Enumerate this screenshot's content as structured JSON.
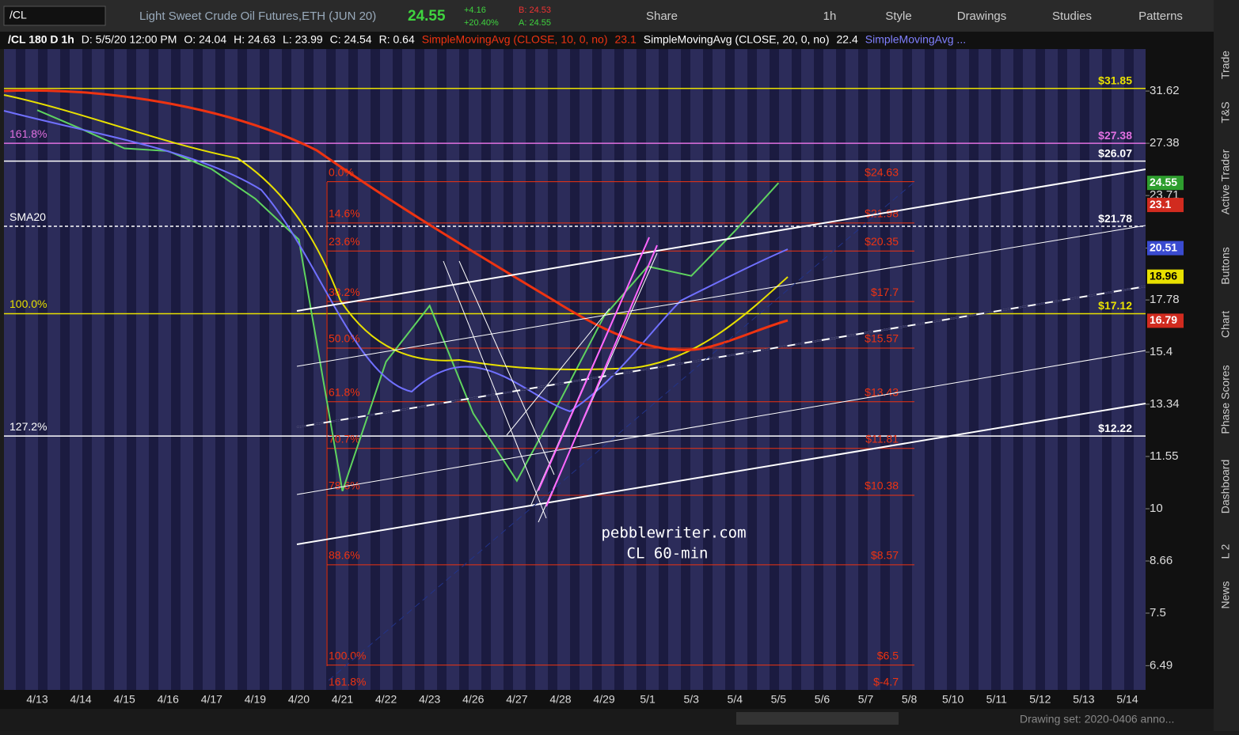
{
  "toolbar": {
    "symbol": "/CL",
    "description": "Light Sweet Crude Oil Futures,ETH (JUN 20)",
    "last": "24.55",
    "change": "+4.16",
    "change_pct": "+20.40%",
    "bid": "B: 24.53",
    "ask": "A: 24.55",
    "buttons": [
      "Share",
      "1h",
      "Style",
      "Drawings",
      "Studies",
      "Patterns"
    ]
  },
  "header": {
    "items": [
      "/CL 180 D 1h",
      "D: 5/5/20 12:00 PM",
      "O: 24.04",
      "H: 24.63",
      "L: 23.99",
      "C: 24.54",
      "R: 0.64"
    ],
    "sma10": "SimpleMovingAvg (CLOSE, 10, 0, no)",
    "sma10_value": "23.1",
    "sma20": "SimpleMovingAvg (CLOSE, 20, 0, no)",
    "sma20_value": "22.4",
    "sma_more": "SimpleMovingAvg ..."
  },
  "chart": {
    "type": "line",
    "log_scale": true,
    "ylim": [
      6.07,
      35.5
    ],
    "yticks": [
      31.62,
      27.38,
      23.71,
      20.51,
      17.78,
      15.4,
      13.34,
      11.55,
      10,
      8.66,
      7.5,
      6.49
    ],
    "categories": [
      "4/13",
      "4/14",
      "4/15",
      "4/16",
      "4/17",
      "4/19",
      "4/20",
      "4/21",
      "4/22",
      "4/23",
      "4/26",
      "4/27",
      "4/28",
      "4/29",
      "5/1",
      "5/3",
      "5/4",
      "5/5",
      "5/6",
      "5/7",
      "5/8",
      "5/10",
      "5/11",
      "5/12",
      "5/13",
      "5/14"
    ],
    "series": [
      {
        "name": "/CL",
        "color": "#5fd35f",
        "values": [
          30,
          28.5,
          27,
          26.8,
          25.5,
          23.5,
          21,
          10.5,
          15,
          17.5,
          13,
          10.8,
          13.5,
          17,
          19.5,
          19,
          21.5,
          24.55,
          null,
          null,
          null,
          null,
          null,
          null,
          null,
          null
        ]
      }
    ],
    "price_tags": [
      {
        "value": 24.55,
        "color": "#2e9e2e"
      },
      {
        "value": 23.1,
        "color": "#d12b1f"
      },
      {
        "value": 20.51,
        "color": "#3a4bd0"
      },
      {
        "value": 18.96,
        "color": "#e8e000"
      },
      {
        "value": 16.79,
        "color": "#d12b1f"
      }
    ],
    "fib_levels": [
      {
        "label": "0.0%",
        "price": {
          "value": 24.63,
          "label": "$24.63"
        }
      },
      {
        "label": "14.6%",
        "price": {
          "value": 21.98,
          "label": "$21.98"
        }
      },
      {
        "label": "23.6%",
        "price": {
          "value": 20.35,
          "label": "$20.35"
        }
      },
      {
        "label": "38.2%",
        "price": {
          "value": 17.7,
          "label": "$17.7"
        }
      },
      {
        "label": "50.0%",
        "price": {
          "value": 15.57,
          "label": "$15.57"
        }
      },
      {
        "label": "61.8%",
        "price": {
          "value": 13.43,
          "label": "$13.43"
        }
      },
      {
        "label": "70.7%",
        "price": {
          "value": 11.81,
          "label": "$11.81"
        }
      },
      {
        "label": "78.6%",
        "price": {
          "value": 10.38,
          "label": "$10.38"
        }
      },
      {
        "label": "88.6%",
        "price": {
          "value": 8.57,
          "label": "$8.57"
        }
      },
      {
        "label": "100.0%",
        "price": {
          "value": 6.5,
          "label": "$6.5"
        }
      },
      {
        "label": "161.8%",
        "price": {
          "value": -4.7,
          "label": "$-4.7"
        }
      }
    ],
    "levels": [
      {
        "price": {
          "value": 31.85,
          "label": "$31.85"
        },
        "color": "#e8e000"
      },
      {
        "price": {
          "value": 27.38,
          "label": "$27.38"
        },
        "color": "#e070e0",
        "left_label": "161.8%"
      },
      {
        "price": {
          "value": 26.07,
          "label": "$26.07"
        },
        "color": "#ffffff"
      },
      {
        "price": {
          "value": 21.78,
          "label": "$21.78"
        },
        "color": "#ffffff",
        "left_label": "SMA20"
      },
      {
        "price": {
          "value": 17.12,
          "label": "$17.12"
        },
        "color": "#e8e000",
        "left_label": "100.0%"
      },
      {
        "price": {
          "value": 12.22,
          "label": "$12.22"
        },
        "color": "#ffffff",
        "left_label": "127.2%"
      }
    ],
    "watermark": [
      "pebblewriter.com",
      "CL 60-min"
    ]
  },
  "sidebar": [
    "Trade",
    "T&S",
    "Active Trader",
    "Buttons",
    "Chart",
    "Phase Scores",
    "Dashboard",
    "L 2",
    "News"
  ],
  "footer": {
    "drawing_set": "Drawing set: 2020-0406 anno..."
  }
}
